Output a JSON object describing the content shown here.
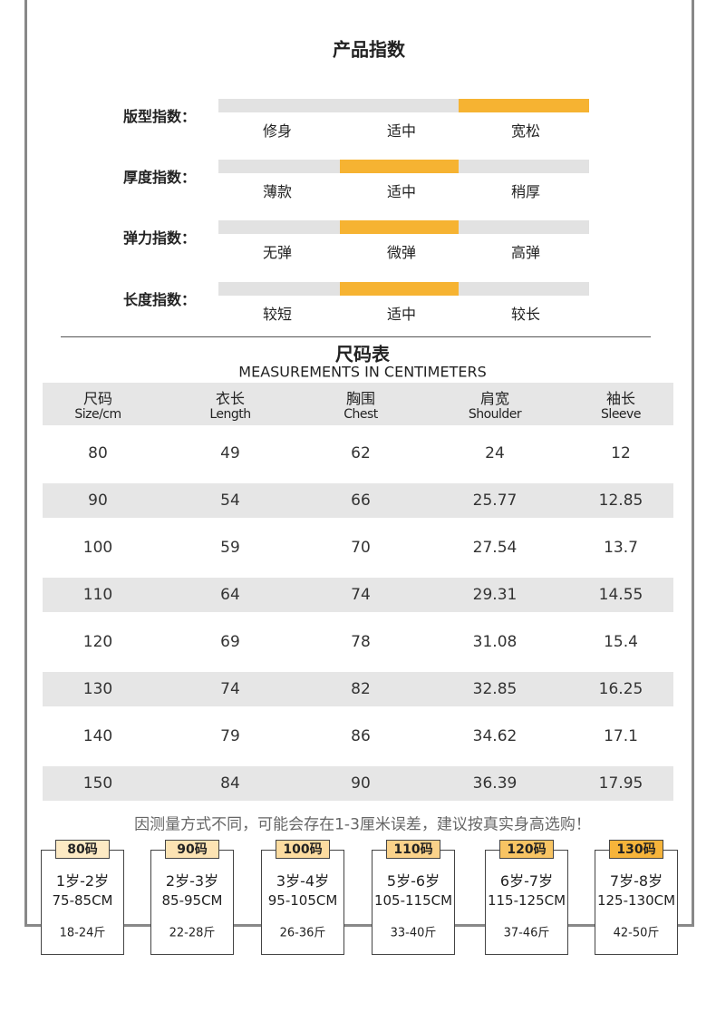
{
  "title": "产品指数",
  "indices": [
    {
      "label": "版型指数：",
      "options": [
        "修身",
        "适中",
        "宽松"
      ],
      "selected": 2
    },
    {
      "label": "厚度指数：",
      "options": [
        "薄款",
        "适中",
        "稍厚"
      ],
      "selected": 1
    },
    {
      "label": "弹力指数：",
      "options": [
        "无弹",
        "微弹",
        "高弹"
      ],
      "selected": 1
    },
    {
      "label": "长度指数：",
      "options": [
        "较短",
        "适中",
        "较长"
      ],
      "selected": 1
    }
  ],
  "size_table": {
    "title": "尺码表",
    "subtitle": "MEASUREMENTS IN CENTIMETERS",
    "headers": [
      {
        "zh": "尺码",
        "en": "Size/cm"
      },
      {
        "zh": "衣长",
        "en": "Length"
      },
      {
        "zh": "胸围",
        "en": "Chest"
      },
      {
        "zh": "肩宽",
        "en": "Shoulder"
      },
      {
        "zh": "袖长",
        "en": "Sleeve"
      }
    ],
    "rows": [
      [
        80,
        49,
        62,
        24,
        12
      ],
      [
        90,
        54,
        66,
        25.77,
        12.85
      ],
      [
        100,
        59,
        70,
        27.54,
        13.7
      ],
      [
        110,
        64,
        74,
        29.31,
        14.55
      ],
      [
        120,
        69,
        78,
        31.08,
        15.4
      ],
      [
        130,
        74,
        82,
        32.85,
        16.25
      ],
      [
        140,
        79,
        86,
        34.62,
        17.1
      ],
      [
        150,
        84,
        90,
        36.39,
        17.95
      ]
    ]
  },
  "note": "因测量方式不同，可能会存在1-3厘米误差，建议按真实身高选购！",
  "cards": [
    {
      "tag": "80码",
      "age": "1岁-2岁",
      "height": "75-85CM",
      "weight": "18-24斤"
    },
    {
      "tag": "90码",
      "age": "2岁-3岁",
      "height": "85-95CM",
      "weight": "22-28斤"
    },
    {
      "tag": "100码",
      "age": "3岁-4岁",
      "height": "95-105CM",
      "weight": "26-36斤"
    },
    {
      "tag": "110码",
      "age": "5岁-6岁",
      "height": "105-115CM",
      "weight": "33-40斤"
    },
    {
      "tag": "120码",
      "age": "6岁-7岁",
      "height": "115-125CM",
      "weight": "37-46斤"
    },
    {
      "tag": "130码",
      "age": "7岁-8岁",
      "height": "125-130CM",
      "weight": "42-50斤"
    }
  ]
}
